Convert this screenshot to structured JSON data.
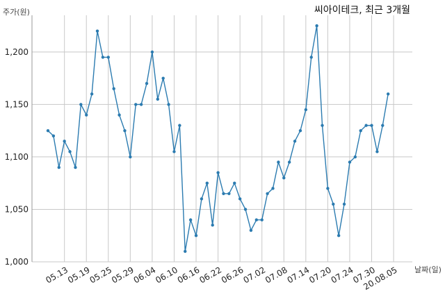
{
  "chart_data": {
    "type": "line",
    "title": "씨아이테크, 최근 3개월",
    "ylabel": "주가(원)",
    "xlabel": "날짜(일)",
    "ylim": [
      1000,
      1235
    ],
    "yticks": [
      1000,
      1050,
      1100,
      1150,
      1200
    ],
    "ytick_labels": [
      "1,000",
      "1,050",
      "1,100",
      "1,150",
      "1,200"
    ],
    "xtick_labels": [
      "05.13",
      "05.19",
      "05.25",
      "05.29",
      "06.04",
      "06.10",
      "06.16",
      "06.22",
      "06.26",
      "07.02",
      "07.08",
      "07.14",
      "07.20",
      "07.24",
      "07.30",
      "20.08.05"
    ],
    "xtick_positions": [
      3,
      7,
      11,
      15,
      19,
      23,
      27,
      31,
      35,
      39,
      43,
      47,
      51,
      55,
      59,
      63
    ],
    "grid": true,
    "series": [
      {
        "color": "#2b7bb0",
        "values": [
          1125,
          1120,
          1090,
          1115,
          1105,
          1090,
          1150,
          1140,
          1160,
          1220,
          1195,
          1195,
          1165,
          1140,
          1125,
          1100,
          1150,
          1150,
          1170,
          1200,
          1155,
          1175,
          1150,
          1105,
          1130,
          1010,
          1040,
          1025,
          1060,
          1075,
          1035,
          1085,
          1065,
          1065,
          1075,
          1060,
          1050,
          1030,
          1040,
          1040,
          1065,
          1070,
          1095,
          1080,
          1095,
          1115,
          1125,
          1145,
          1195,
          1225,
          1130,
          1070,
          1055,
          1025,
          1055,
          1095,
          1100,
          1125,
          1130,
          1130,
          1105,
          1130,
          1160
        ]
      }
    ]
  }
}
